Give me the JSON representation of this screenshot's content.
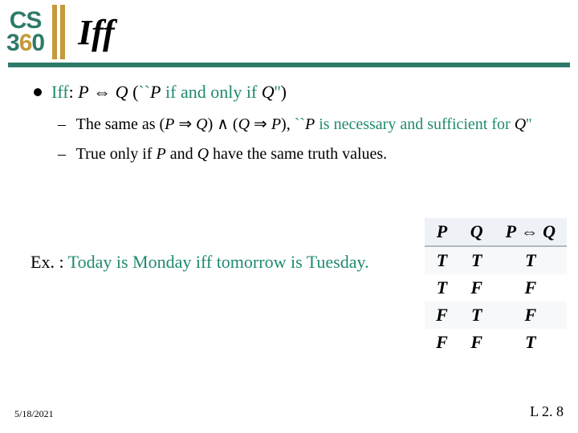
{
  "logo": {
    "top": "CS",
    "bottom_d1": "3",
    "bottom_d2": "6",
    "bottom_d3": "0"
  },
  "title": "Iff",
  "colors": {
    "accent_teal": "#2e7a6a",
    "accent_gold": "#c49a3a",
    "green_text": "#1f8a70"
  },
  "main": {
    "iff_label": "Iff",
    "colon": ": ",
    "p": "P",
    "iff_arrow": " ⇔ ",
    "q": "Q",
    "open_paren": "  (",
    "backtick_open": "``",
    "if_and_only_if": " if and only if ",
    "backtick_close": "''",
    "close_paren": ")"
  },
  "sub1": {
    "dash": "–",
    "prefix": "The same as ",
    "open": "(",
    "p1": "P",
    "imp1": " ⇒ ",
    "q1": "Q",
    "close1": ")",
    "and": " ∧ ",
    "open2": "(",
    "q2": "Q",
    "imp2": " ⇒ ",
    "p2": "P",
    "close2": ")",
    "comma": ", ",
    "bt_open": "``",
    "p3": "P",
    "nec": " is necessary and sufficient for ",
    "q3": "Q",
    "bt_close": "''"
  },
  "sub2": {
    "dash": "–",
    "text1": "True only if ",
    "p": "P",
    "and_word": " and ",
    "q": "Q",
    "text2": " have the same truth values."
  },
  "example": {
    "label": "Ex. :",
    "text": " Today is Monday iff tomorrow is Tuesday."
  },
  "table": {
    "headers": {
      "p": "P",
      "q": "Q",
      "pq_p": "P",
      "pq_arrow": " ⇔ ",
      "pq_q": "Q"
    },
    "rows": [
      {
        "p": "T",
        "q": "T",
        "r": "T"
      },
      {
        "p": "T",
        "q": "F",
        "r": "F"
      },
      {
        "p": "F",
        "q": "T",
        "r": "F"
      },
      {
        "p": "F",
        "q": "F",
        "r": "T"
      }
    ]
  },
  "footer": {
    "date": "5/18/2021",
    "page": "L 2. 8"
  }
}
